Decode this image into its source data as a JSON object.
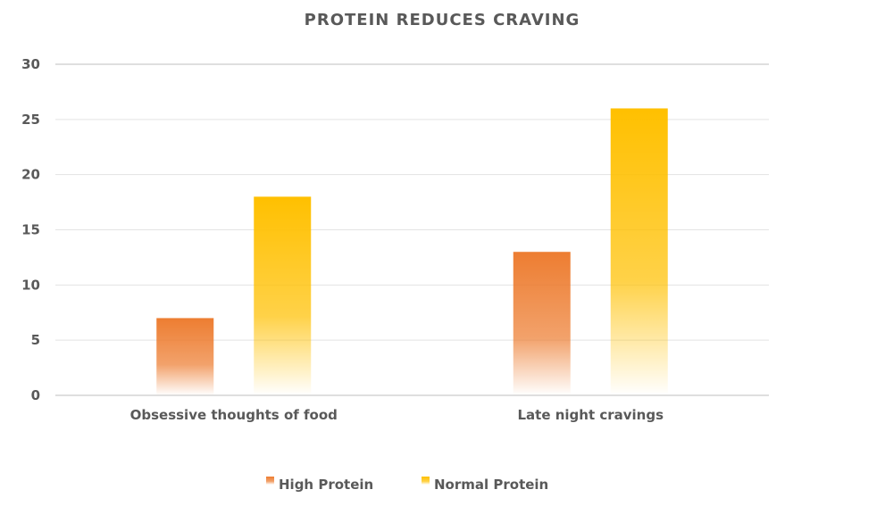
{
  "chart_data": {
    "type": "bar",
    "title": "PROTEIN REDUCES CRAVING",
    "categories": [
      "Obsessive thoughts of food",
      "Late night cravings"
    ],
    "series": [
      {
        "name": "High Protein",
        "values": [
          7,
          13
        ],
        "color": "#ED7D31"
      },
      {
        "name": "Normal Protein",
        "values": [
          18,
          26
        ],
        "color": "#FFC000"
      }
    ],
    "ylim": [
      0,
      30
    ],
    "yticks": [
      "0",
      "5",
      "10",
      "15",
      "20",
      "25",
      "30"
    ],
    "grid": true,
    "legend_position": "bottom"
  }
}
